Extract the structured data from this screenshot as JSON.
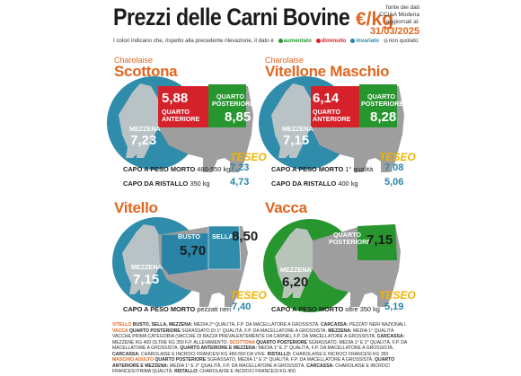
{
  "header": {
    "title": "Prezzi delle Carni Bovine",
    "unit": "€/kg",
    "source_line1": "fonte dei dati",
    "source_line2": "CCIAA Modena",
    "source_line3": "aggiornati al:",
    "date": "31/03/2025"
  },
  "legend": {
    "intro": "I colori indicano che, rispetto alla precedente rilevazione, il dato è",
    "aumentato": "aumentato",
    "diminuito": "diminuito",
    "invariato": "invariato",
    "non_quotato": "non quotato",
    "colors": {
      "aumentato": "#27962f",
      "diminuito": "#d5222a",
      "invariato": "#2a84a8",
      "non_quotato": "#bdbdbd"
    }
  },
  "scottona": {
    "breed": "Charolaise",
    "name": "Scottona",
    "anteriore_label": "Quarto anteriore",
    "anteriore_value": "5,88",
    "posteriore_label": "Quarto posteriore",
    "posteriore_value": "8,85",
    "mezzena_label": "Mezzena",
    "mezzena_value": "7,23",
    "teseo": "TESEO",
    "row1_label": "CAPO A PESO MORTO",
    "row1_detail": "480-550 kg",
    "row1_value": "7,23",
    "row2_label": "CAPO DA RISTALLO",
    "row2_detail": "350 kg",
    "row2_value": "4,73"
  },
  "vitellone": {
    "breed": "Charolaise",
    "name": "Vitellone Maschio",
    "anteriore_label": "Quarto anteriore",
    "anteriore_value": "6,14",
    "posteriore_label": "Quarto posteriore",
    "posteriore_value": "8,28",
    "mezzena_label": "Mezzena",
    "mezzena_value": "7,15",
    "teseo": "TESEO",
    "row1_label": "CAPO A PESO MORTO",
    "row1_detail": "1° qualità",
    "row1_value": "7,08",
    "row2_label": "CAPO DA RISTALLO",
    "row2_detail": "400 kg",
    "row2_value": "5,06"
  },
  "vitello": {
    "name": "Vitello",
    "busto_label": "Busto",
    "busto_value": "5,70",
    "sella_label": "Sella",
    "sella_value": "8,50",
    "mezzena_label": "Mezzena",
    "mezzena_value": "7,15",
    "teseo": "TESEO",
    "row1_label": "CAPO A PESO MORTO",
    "row1_detail": "pezzati neri",
    "row1_value": "7,40"
  },
  "vacca": {
    "name": "Vacca",
    "posteriore_label": "Quarto posteriore",
    "posteriore_value": "7,15",
    "mezzena_label": "Mezzena",
    "mezzena_value": "6,20",
    "teseo": "TESEO",
    "row1_label": "CAPO A PESO MORTO",
    "row1_detail": "oltre 350 kg",
    "row1_value": "5,19"
  },
  "footer": {
    "s1": "VITELLO",
    "s2": " BUSTO, SELLA, MEZZENA:",
    "s3": " MEDIA 2° QUALITÀ, F.P. DA MACELLATORE A GROSSISTA. ",
    "s4": "CARCASSA:",
    "s5": " PEZZATI NERI NAZIONALI. ",
    "s6": "VACCA",
    "s7": " QUARTO POSTERIORE",
    "s8": " SGRASSATO DI 1° QUALITÀ, F.P. DA MACELLATORE A GROSSISTA. ",
    "s9": "MEZZENA:",
    "s10": " MEDIA 1° QUALITÀ VACCHE PRIMA CATEGORIA (VACCHE DI RAZZA PREVALENTEMENTE DA CARNE), F.P. DA MACELLATORE A GROSSISTA. ",
    "s11": "CARCASSA:",
    "s12": " MEZZENE KG 400 OLTRE KG 350 F.P. ALLEVAMENTO. ",
    "s13": "SCOTTONA",
    "s14": " QUARTO POSTERIORE",
    "s15": " SGRASSATO, MEDIA 1° E 2° QUALITÀ, F.P. DA MACELLATORE A GROSSISTA. ",
    "s16": "QUARTO ANTERIORE E MEZZENA:",
    "s17": " MEDIA 1° E 2° QUALITÀ, F.P. DA MACELLATORE A GROSSISTA. ",
    "s18": "CARCASSA:",
    "s19": " CHAROLAISE E INCROCI FRANCESI KG 480-550 DA VIVE. ",
    "s20": "RISTALLO:",
    "s21": " CHAROLAISE E INCROCI FRANCESI KG 350. ",
    "s22": "MASCHIO ADULTO",
    "s23": " QUARTO POSTERIORE",
    "s24": " SGRASSATO, MEDIA 1° E 2° QUALITÀ, F.P. DA MACELLATORE A GROSSISTA. ",
    "s25": "QUARTO ANTERIORE E MEZZENA:",
    "s26": " MEDIA 1° E 2° QUALITÀ, F.P. DA MACELLATORE A GROSSISTA. ",
    "s27": "CARCASSA:",
    "s28": " CHAROLAISE E INCROCI FRANCESI PRIMA QUALITÀ. ",
    "s29": "RISTALLO:",
    "s30": " CHAROLAISE E INCROCI FRANCESI KG 400."
  }
}
